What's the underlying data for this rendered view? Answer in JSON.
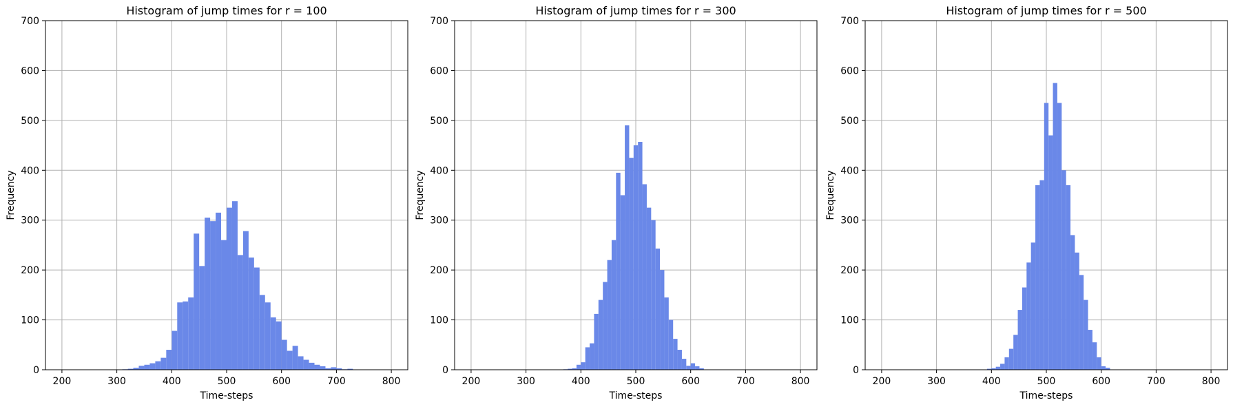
{
  "style": {
    "bar_color": "#6a88e8",
    "grid_color": "#b0b0b0"
  },
  "chart_data": [
    {
      "type": "bar",
      "title": "Histogram of jump times for r = 100",
      "xlabel": "Time-steps",
      "ylabel": "Frequency",
      "xlim": [
        170,
        830
      ],
      "ylim": [
        0,
        700
      ],
      "xticks": [
        200,
        300,
        400,
        500,
        600,
        700,
        800
      ],
      "yticks": [
        0,
        100,
        200,
        300,
        400,
        500,
        600,
        700
      ],
      "grid": true,
      "bin_width": 10,
      "bin_starts": [
        300,
        310,
        320,
        330,
        340,
        350,
        360,
        370,
        380,
        390,
        400,
        410,
        420,
        430,
        440,
        450,
        460,
        470,
        480,
        490,
        500,
        510,
        520,
        530,
        540,
        550,
        560,
        570,
        580,
        590,
        600,
        610,
        620,
        630,
        640,
        650,
        660,
        670,
        680,
        690,
        700,
        710,
        720,
        730
      ],
      "values": [
        0,
        1,
        2,
        4,
        8,
        10,
        13,
        17,
        24,
        40,
        78,
        135,
        137,
        145,
        273,
        208,
        305,
        298,
        315,
        260,
        325,
        338,
        230,
        278,
        225,
        205,
        150,
        135,
        105,
        97,
        60,
        38,
        48,
        27,
        20,
        14,
        10,
        7,
        3,
        5,
        3,
        1,
        2,
        0
      ]
    },
    {
      "type": "bar",
      "title": "Histogram of jump times for r = 300",
      "xlabel": "Time-steps",
      "ylabel": "Frequency",
      "xlim": [
        170,
        830
      ],
      "ylim": [
        0,
        700
      ],
      "xticks": [
        200,
        300,
        400,
        500,
        600,
        700,
        800
      ],
      "yticks": [
        0,
        100,
        200,
        300,
        400,
        500,
        600,
        700
      ],
      "grid": true,
      "bin_width": 8,
      "bin_starts": [
        368,
        376,
        384,
        392,
        400,
        408,
        416,
        424,
        432,
        440,
        448,
        456,
        464,
        472,
        480,
        488,
        496,
        504,
        512,
        520,
        528,
        536,
        544,
        552,
        560,
        568,
        576,
        584,
        592,
        600,
        608,
        616,
        624
      ],
      "values": [
        1,
        2,
        3,
        10,
        15,
        45,
        53,
        112,
        140,
        176,
        220,
        260,
        395,
        350,
        490,
        425,
        450,
        457,
        372,
        325,
        300,
        243,
        200,
        145,
        100,
        62,
        40,
        22,
        8,
        13,
        7,
        3,
        0
      ]
    },
    {
      "type": "bar",
      "title": "Histogram of jump times for r = 500",
      "xlabel": "Time-steps",
      "ylabel": "Frequency",
      "xlim": [
        170,
        830
      ],
      "ylim": [
        0,
        700
      ],
      "xticks": [
        200,
        300,
        400,
        500,
        600,
        700,
        800
      ],
      "yticks": [
        0,
        100,
        200,
        300,
        400,
        500,
        600,
        700
      ],
      "grid": true,
      "bin_width": 8,
      "bin_starts": [
        392,
        400,
        408,
        416,
        424,
        432,
        440,
        448,
        456,
        464,
        472,
        480,
        488,
        496,
        504,
        512,
        520,
        528,
        536,
        544,
        552,
        560,
        568,
        576,
        584,
        592,
        600,
        608
      ],
      "values": [
        2,
        3,
        6,
        12,
        25,
        42,
        70,
        120,
        165,
        215,
        255,
        370,
        380,
        535,
        470,
        575,
        535,
        400,
        370,
        270,
        235,
        190,
        140,
        80,
        55,
        25,
        7,
        4
      ]
    }
  ]
}
